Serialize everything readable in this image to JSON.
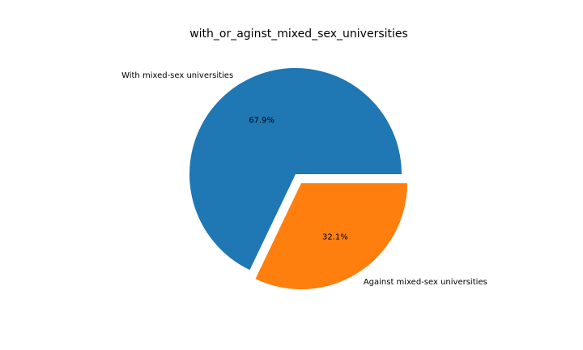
{
  "chart_data": {
    "type": "pie",
    "title": "with_or_aginst_mixed_sex_universities",
    "slices": [
      {
        "label": "With mixed-sex universities",
        "value": 67.9,
        "pct_label": "67.9%",
        "color": "#1f77b4",
        "exploded": false
      },
      {
        "label": "Against mixed-sex universities",
        "value": 32.1,
        "pct_label": "32.1%",
        "color": "#ff7f0e",
        "exploded": true
      }
    ],
    "start_angle_deg": 0,
    "direction": "counterclockwise",
    "legend": "none"
  }
}
